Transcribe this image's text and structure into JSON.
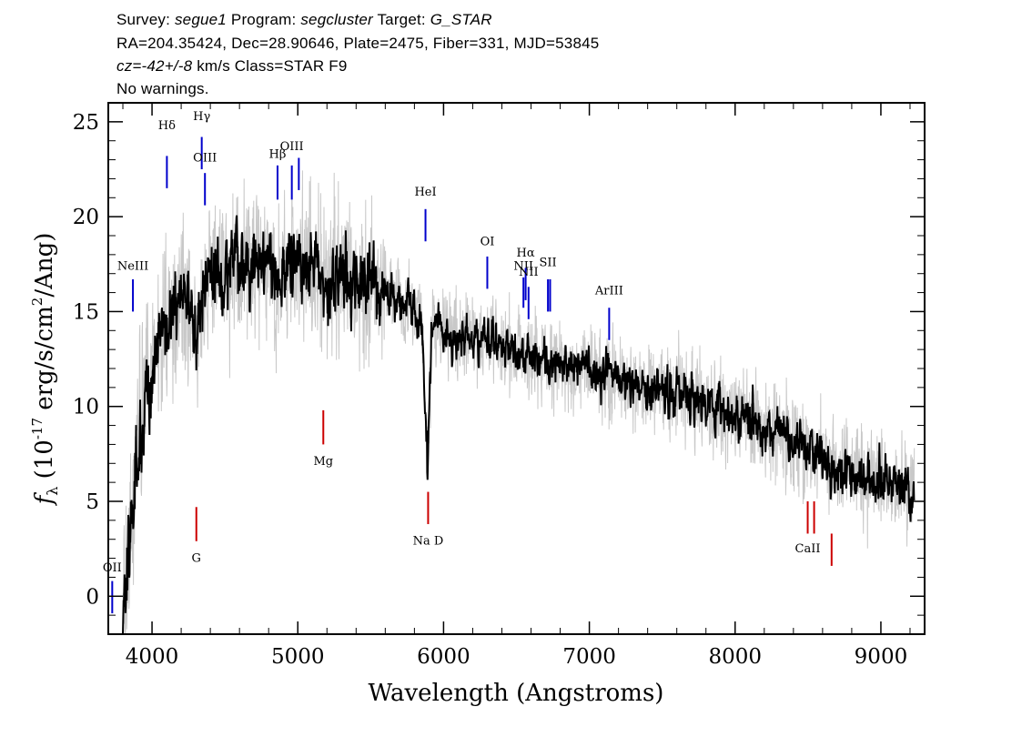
{
  "header": {
    "survey_label": "Survey:",
    "survey": "segue1",
    "program_label": "Program:",
    "program": "segcluster",
    "target_label": "Target:",
    "target": "G_STAR",
    "line2": "RA=204.35424, Dec=28.90646, Plate=2475, Fiber=331, MJD=53845",
    "cz_label": "cz=",
    "cz_value": "-42+/-8",
    "cz_rest": " km/s Class=STAR F9",
    "line4": "No warnings."
  },
  "chart_data": {
    "type": "line",
    "xlabel": "Wavelength (Angstroms)",
    "ylabel_prefix": "f",
    "ylabel_sub": "λ",
    "ylabel_rest": " (10",
    "ylabel_exp": "-17",
    "ylabel_units": " erg/s/cm",
    "ylabel_exp2": "2",
    "ylabel_tail": "/Ang)",
    "xlim": [
      3700,
      9300
    ],
    "ylim": [
      -2,
      26
    ],
    "xticks": [
      4000,
      5000,
      6000,
      7000,
      8000,
      9000
    ],
    "yticks": [
      0,
      5,
      10,
      15,
      20,
      25
    ],
    "series": [
      {
        "role": "model",
        "color": "#000000",
        "points": [
          [
            3800,
            -1
          ],
          [
            3850,
            3
          ],
          [
            3900,
            8
          ],
          [
            3950,
            10
          ],
          [
            4000,
            12
          ],
          [
            4050,
            14
          ],
          [
            4100,
            13.5
          ],
          [
            4150,
            15
          ],
          [
            4200,
            16
          ],
          [
            4250,
            15.5
          ],
          [
            4300,
            13
          ],
          [
            4350,
            16
          ],
          [
            4400,
            17
          ],
          [
            4450,
            17.2
          ],
          [
            4500,
            16.8
          ],
          [
            4550,
            17.3
          ],
          [
            4600,
            17.5
          ],
          [
            4650,
            17
          ],
          [
            4700,
            17.4
          ],
          [
            4750,
            17.6
          ],
          [
            4800,
            17.2
          ],
          [
            4850,
            16.5
          ],
          [
            4900,
            17.3
          ],
          [
            4950,
            17.7
          ],
          [
            5000,
            17.4
          ],
          [
            5050,
            17.6
          ],
          [
            5100,
            17.3
          ],
          [
            5150,
            16.8
          ],
          [
            5200,
            16.5
          ],
          [
            5250,
            16.7
          ],
          [
            5300,
            17
          ],
          [
            5350,
            16.8
          ],
          [
            5400,
            16.6
          ],
          [
            5450,
            16.4
          ],
          [
            5500,
            16.6
          ],
          [
            5550,
            16.3
          ],
          [
            5600,
            16.1
          ],
          [
            5650,
            15.9
          ],
          [
            5700,
            15.6
          ],
          [
            5750,
            15.4
          ],
          [
            5800,
            15.1
          ],
          [
            5850,
            14.6
          ],
          [
            5890,
            6.5
          ],
          [
            5920,
            14.4
          ],
          [
            5950,
            14.2
          ],
          [
            6000,
            14
          ],
          [
            6050,
            13.8
          ],
          [
            6100,
            13.7
          ],
          [
            6150,
            13.6
          ],
          [
            6200,
            13.5
          ],
          [
            6250,
            13.5
          ],
          [
            6300,
            13.4
          ],
          [
            6350,
            13.2
          ],
          [
            6400,
            13.1
          ],
          [
            6450,
            13
          ],
          [
            6500,
            12.9
          ],
          [
            6550,
            12.7
          ],
          [
            6600,
            12.7
          ],
          [
            6650,
            12.6
          ],
          [
            6700,
            12.5
          ],
          [
            6750,
            12.3
          ],
          [
            6800,
            12.3
          ],
          [
            6850,
            12.2
          ],
          [
            6900,
            12.1
          ],
          [
            6950,
            12
          ],
          [
            7000,
            11.9
          ],
          [
            7050,
            11.8
          ],
          [
            7100,
            11.6
          ],
          [
            7150,
            11.5
          ],
          [
            7200,
            11.4
          ],
          [
            7250,
            11.3
          ],
          [
            7300,
            11.2
          ],
          [
            7350,
            11.1
          ],
          [
            7400,
            11
          ],
          [
            7450,
            10.9
          ],
          [
            7500,
            10.8
          ],
          [
            7550,
            10.7
          ],
          [
            7600,
            10.5
          ],
          [
            7650,
            10.4
          ],
          [
            7700,
            10.3
          ],
          [
            7750,
            10.2
          ],
          [
            7800,
            10.1
          ],
          [
            7850,
            10
          ],
          [
            7900,
            9.8
          ],
          [
            7950,
            9.7
          ],
          [
            8000,
            9.6
          ],
          [
            8050,
            9.4
          ],
          [
            8100,
            9.3
          ],
          [
            8150,
            9.1
          ],
          [
            8200,
            9
          ],
          [
            8250,
            8.8
          ],
          [
            8300,
            8.6
          ],
          [
            8350,
            8.4
          ],
          [
            8400,
            8.2
          ],
          [
            8450,
            8
          ],
          [
            8500,
            7.6
          ],
          [
            8550,
            7.3
          ],
          [
            8600,
            7.1
          ],
          [
            8650,
            6.9
          ],
          [
            8700,
            6.8
          ],
          [
            8750,
            6.6
          ],
          [
            8800,
            6.5
          ],
          [
            8850,
            6.4
          ],
          [
            8900,
            6.3
          ],
          [
            8950,
            6.2
          ],
          [
            9000,
            6.1
          ],
          [
            9050,
            6
          ],
          [
            9100,
            5.9
          ],
          [
            9150,
            5.8
          ],
          [
            9200,
            5.6
          ],
          [
            9230,
            5.5
          ]
        ]
      },
      {
        "role": "flux",
        "color": "#c8c8c8"
      }
    ],
    "emission_lines": [
      {
        "label": "OII",
        "x": 3727,
        "y_bottom": -0.9,
        "y_top": 0.8,
        "label_y": 1.3,
        "color": "#0000cc"
      },
      {
        "label": "NeIII",
        "x": 3869,
        "y_bottom": 15,
        "y_top": 16.7,
        "label_y": 17.2,
        "color": "#0000cc"
      },
      {
        "label": "Hδ",
        "x": 4102,
        "y_bottom": 21.5,
        "y_top": 23.2,
        "label_y": 24.6,
        "color": "#0000cc"
      },
      {
        "label": "Hγ",
        "x": 4341,
        "y_bottom": 22.5,
        "y_top": 24.2,
        "label_y": 25.1,
        "color": "#0000cc"
      },
      {
        "label": "OIII",
        "x": 4363,
        "y_bottom": 20.6,
        "y_top": 22.3,
        "label_y": 22.9,
        "color": "#0000cc"
      },
      {
        "label": "Hβ",
        "x": 4861,
        "y_bottom": 20.9,
        "y_top": 22.7,
        "label_y": 23.1,
        "color": "#0000cc"
      },
      {
        "label": "OIII",
        "x": 4959,
        "y_bottom": 20.9,
        "y_top": 22.7,
        "label_y": 23.5,
        "color": "#0000cc"
      },
      {
        "label": "",
        "x": 5007,
        "y_bottom": 21.4,
        "y_top": 23.1,
        "label_y": 0,
        "color": "#0000cc"
      },
      {
        "label": "HeI",
        "x": 5876,
        "y_bottom": 18.7,
        "y_top": 20.4,
        "label_y": 21.1,
        "color": "#0000cc"
      },
      {
        "label": "OI",
        "x": 6300,
        "y_bottom": 16.2,
        "y_top": 17.9,
        "label_y": 18.5,
        "color": "#0000cc"
      },
      {
        "label": "NII",
        "x": 6548,
        "y_bottom": 15.2,
        "y_top": 16.8,
        "label_y": 17.2,
        "color": "#0000cc"
      },
      {
        "label": "Hα",
        "x": 6563,
        "y_bottom": 15.6,
        "y_top": 17.3,
        "label_y": 17.9,
        "color": "#0000cc"
      },
      {
        "label": "NII",
        "x": 6583,
        "y_bottom": 14.6,
        "y_top": 16.3,
        "label_y": 16.9,
        "color": "#0000cc"
      },
      {
        "label": "SII",
        "x": 6716,
        "y_bottom": 15,
        "y_top": 16.7,
        "label_y": 17.4,
        "color": "#0000cc"
      },
      {
        "label": "",
        "x": 6731,
        "y_bottom": 15,
        "y_top": 16.7,
        "label_y": 0,
        "color": "#0000cc"
      },
      {
        "label": "ArIII",
        "x": 7136,
        "y_bottom": 13.5,
        "y_top": 15.2,
        "label_y": 15.9,
        "color": "#0000cc"
      }
    ],
    "absorption_lines": [
      {
        "label": "G",
        "x": 4304,
        "y_top": 4.7,
        "y_bottom": 2.9,
        "label_y": 2.3,
        "color": "#cc0000"
      },
      {
        "label": "Mg",
        "x": 5175,
        "y_top": 9.8,
        "y_bottom": 8.0,
        "label_y": 7.4,
        "color": "#cc0000"
      },
      {
        "label": "Na D",
        "x": 5894,
        "y_top": 5.5,
        "y_bottom": 3.8,
        "label_y": 3.2,
        "color": "#cc0000"
      },
      {
        "label": "CaII",
        "x": 8498,
        "y_top": 5.0,
        "y_bottom": 3.3,
        "label_y": 2.8,
        "color": "#cc0000"
      },
      {
        "label": "",
        "x": 8542,
        "y_top": 5.0,
        "y_bottom": 3.3,
        "label_y": 0,
        "color": "#cc0000"
      },
      {
        "label": "",
        "x": 8662,
        "y_top": 3.3,
        "y_bottom": 1.6,
        "label_y": 0,
        "color": "#cc0000"
      }
    ]
  }
}
